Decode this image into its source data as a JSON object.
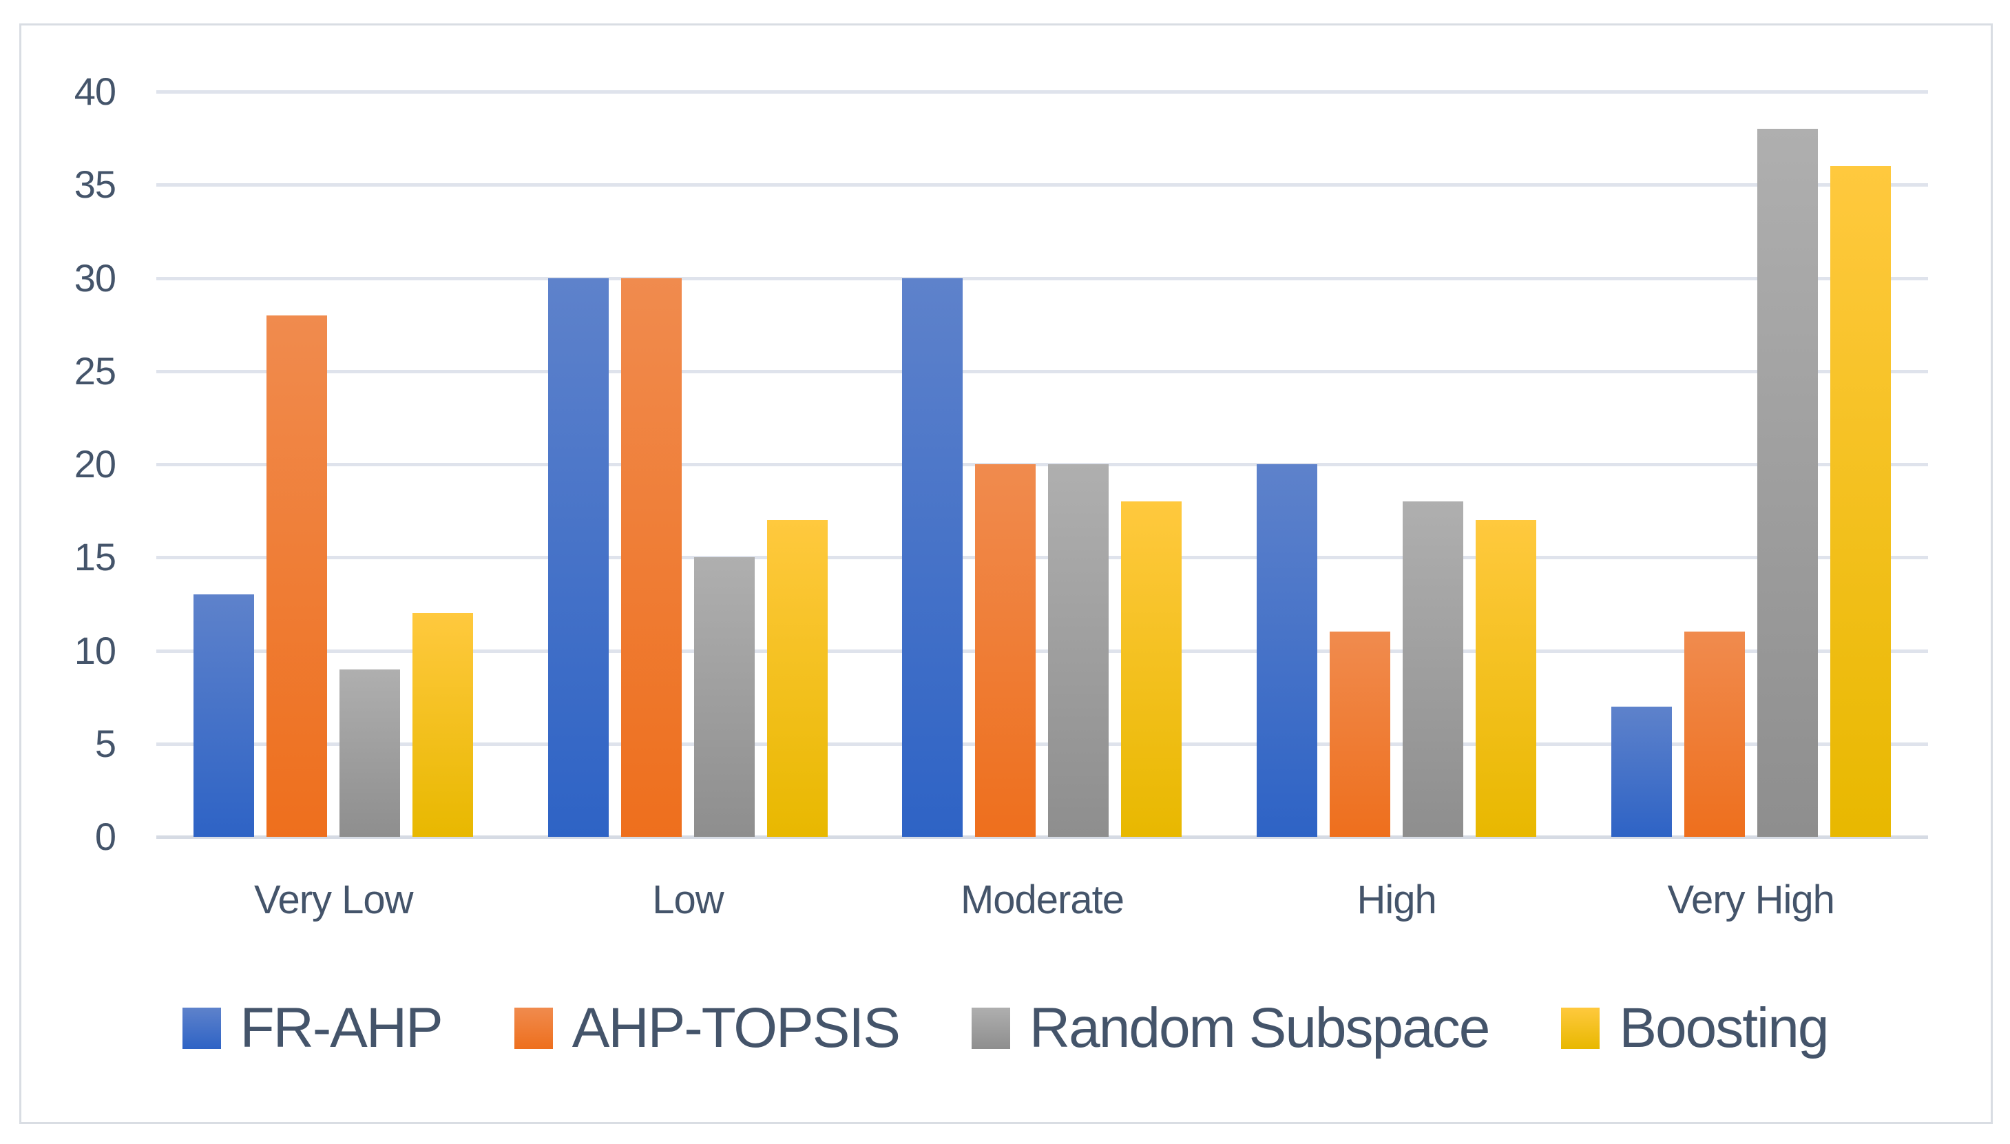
{
  "figure": {
    "background": "#ffffff",
    "border_color": "#d9dde3",
    "text_color": "#44546a",
    "gridline_color": "#dfe3ec",
    "axis_line_color": "#d6dbe4"
  },
  "chart_data": {
    "type": "bar",
    "title": "",
    "xlabel": "",
    "ylabel": "",
    "categories": [
      "Very Low",
      "Low",
      "Moderate",
      "High",
      "Very High"
    ],
    "series": [
      {
        "name": "FR-AHP",
        "color_top": "#5e82cb",
        "color_bottom": "#2e63c5",
        "values": [
          13,
          30,
          30,
          20,
          7
        ]
      },
      {
        "name": "AHP-TOPSIS",
        "color_top": "#f08b4e",
        "color_bottom": "#ee6f1d",
        "values": [
          28,
          30,
          20,
          11,
          11
        ]
      },
      {
        "name": "Random Subspace",
        "color_top": "#afafaf",
        "color_bottom": "#8e8e8e",
        "values": [
          9,
          15,
          20,
          18,
          38
        ]
      },
      {
        "name": "Boosting",
        "color_top": "#ffc93e",
        "color_bottom": "#e8b800",
        "values": [
          12,
          17,
          18,
          17,
          36
        ]
      }
    ],
    "ylim": [
      0,
      40
    ],
    "yticks": [
      0,
      5,
      10,
      15,
      20,
      25,
      30,
      35,
      40
    ],
    "grid": true,
    "legend_position": "bottom"
  }
}
